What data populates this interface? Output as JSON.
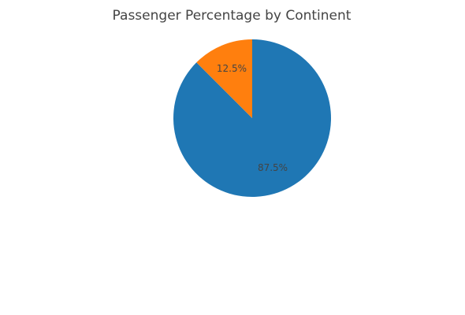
{
  "chart_data": {
    "type": "pie",
    "title": "Passenger Percentage by Continent",
    "slices": [
      {
        "value": 87.5,
        "label": "87.5%",
        "color": "#1f77b4"
      },
      {
        "value": 12.5,
        "label": "12.5%",
        "color": "#ff7f0e"
      }
    ],
    "legend": "none"
  }
}
